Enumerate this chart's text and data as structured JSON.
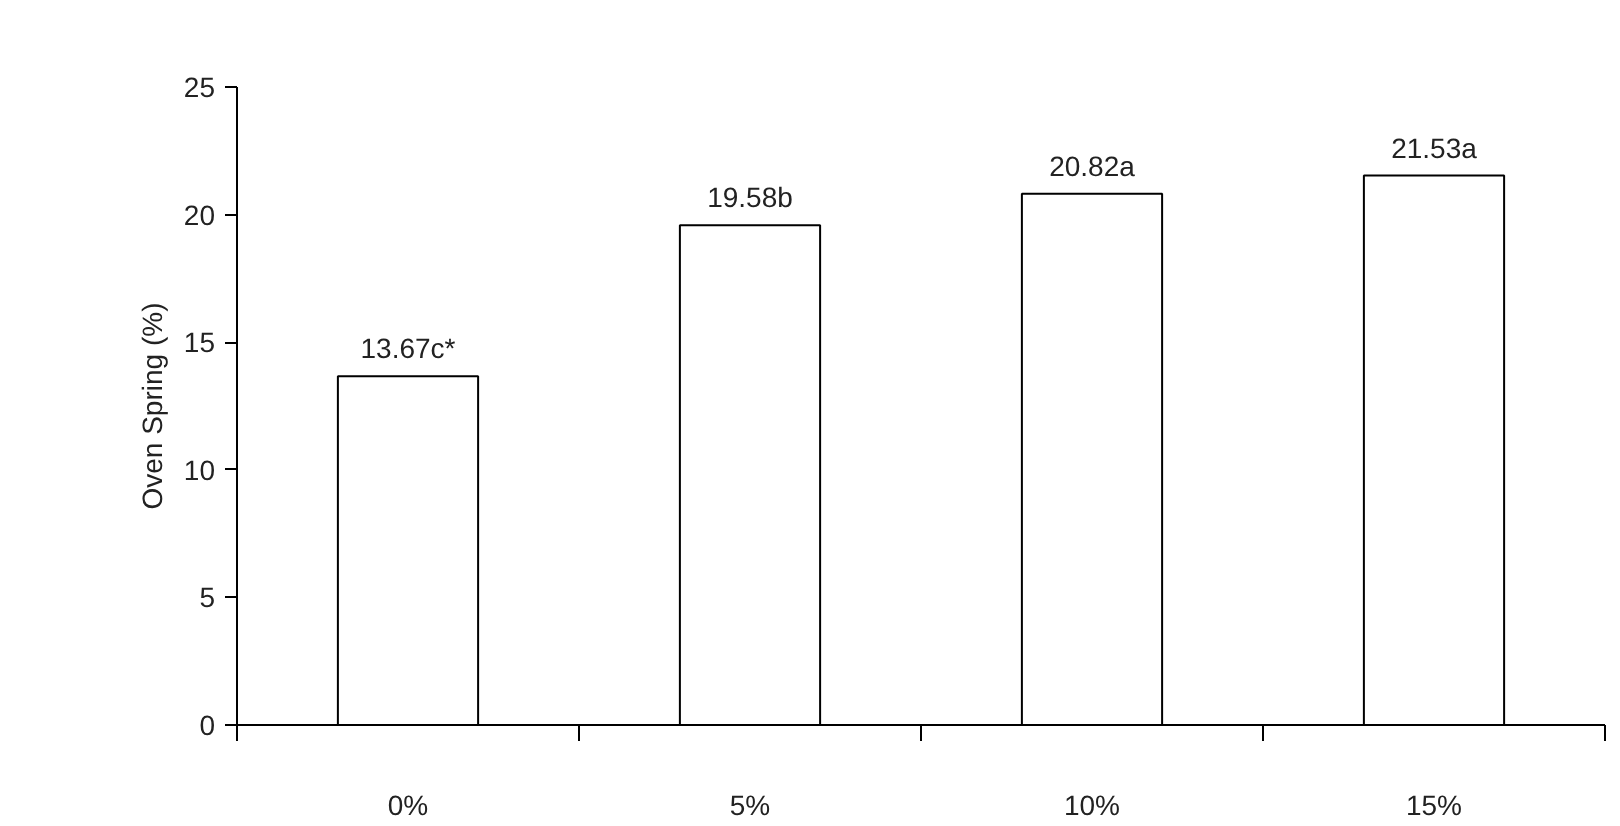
{
  "chart_data": {
    "type": "bar",
    "ylabel": "Oven Spring (%)",
    "categories": [
      "0%",
      "5%",
      "10%",
      "15%"
    ],
    "values": [
      13.67,
      19.58,
      20.82,
      21.53
    ],
    "value_labels": [
      "13.67c*",
      "19.58b",
      "20.82a",
      "21.53a"
    ],
    "color": "#ffffff",
    "ylim": [
      0,
      25
    ],
    "yticks": [
      0,
      5,
      10,
      15,
      20,
      25
    ]
  }
}
